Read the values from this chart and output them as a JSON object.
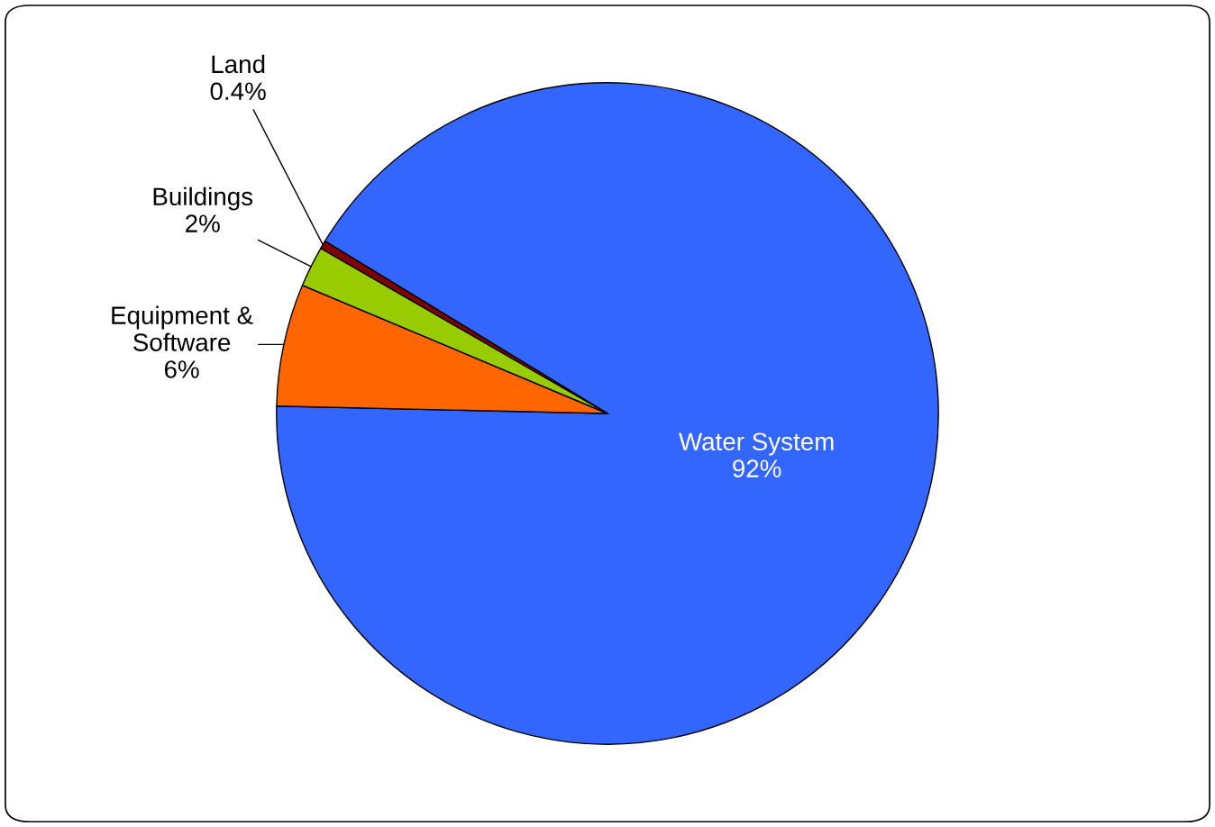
{
  "chart_data": {
    "type": "pie",
    "categories": [
      "Water System",
      "Equipment & Software",
      "Buildings",
      "Land"
    ],
    "values": [
      92,
      6,
      2,
      0.4
    ],
    "value_labels": [
      "92%",
      "6%",
      "2%",
      "0.4%"
    ],
    "colors": [
      "#3366ff",
      "#ff6600",
      "#99cc00",
      "#800000"
    ]
  }
}
